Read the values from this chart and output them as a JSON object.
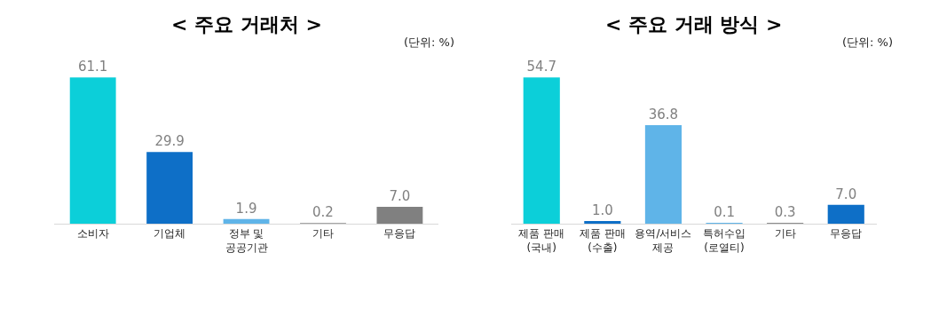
{
  "chart_data": [
    {
      "type": "bar",
      "title": "< 주요 거래처 >",
      "annotations": [
        "(단위: %)"
      ],
      "categories": [
        "소비자",
        "기업체",
        "정부 및\n공공기관",
        "기타",
        "무응답"
      ],
      "values": [
        61.1,
        29.9,
        1.9,
        0.2,
        7.0
      ],
      "value_labels": [
        "61.1",
        "29.9",
        "1.9",
        "0.2",
        "7.0"
      ],
      "colors": [
        "#0ccfd9",
        "#0e6fc7",
        "#5fb4e8",
        "#a6a6a6",
        "#808080"
      ]
    },
    {
      "type": "bar",
      "title": "< 주요 거래 방식 >",
      "annotations": [
        "(단위: %)"
      ],
      "categories": [
        "제품 판매\n(국내)",
        "제품 판매\n(수출)",
        "용역/서비스\n제공",
        "특허수입\n(로열티)",
        "기타",
        "무응답"
      ],
      "values": [
        54.7,
        1.0,
        36.8,
        0.1,
        0.3,
        7.0
      ],
      "value_labels": [
        "54.7",
        "1.0",
        "36.8",
        "0.1",
        "0.3",
        "7.0"
      ],
      "colors": [
        "#0ccfd9",
        "#0e6fc7",
        "#5fb4e8",
        "#5fb4e8",
        "#8c8c8c",
        "#0e6fc7"
      ]
    }
  ]
}
